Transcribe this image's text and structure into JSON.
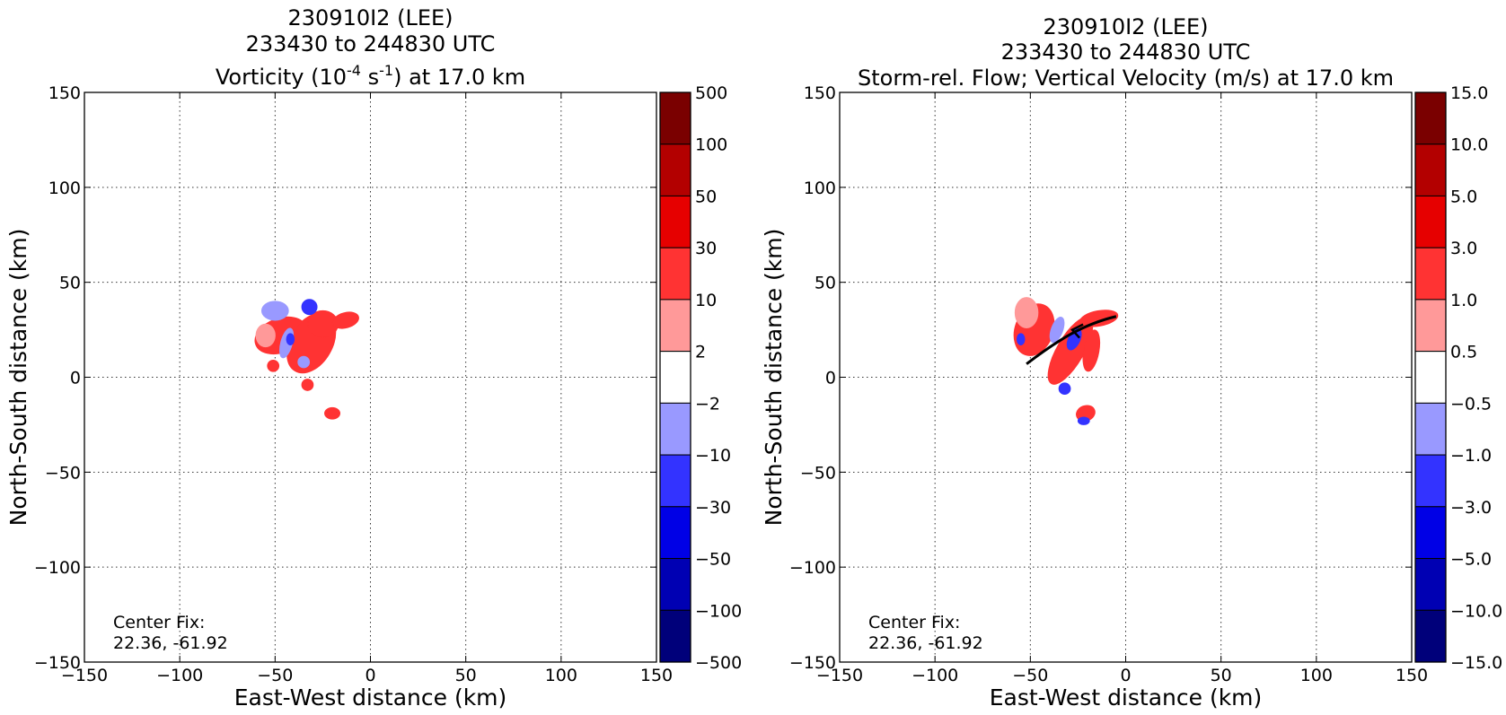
{
  "panels": [
    {
      "id": "left",
      "title_lines": [
        "230910I2 (LEE)",
        "233430 to 244830 UTC"
      ],
      "title_var": {
        "pre": "Vorticity (10",
        "sup1": "-4",
        "mid": " s",
        "sup2": "-1",
        "post": ") at 17.0 km"
      },
      "xlabel": "East-West distance (km)",
      "ylabel": "North-South distance (km)",
      "annotation": [
        "Center Fix:",
        "22.36, -61.92"
      ]
    },
    {
      "id": "right",
      "title_lines": [
        "230910I2 (LEE)",
        "233430 to 244830 UTC",
        "Storm-rel. Flow; Vertical Velocity (m/s) at 17.0 km"
      ],
      "xlabel": "East-West distance (km)",
      "ylabel": "North-South distance (km)",
      "annotation": [
        "Center Fix:",
        "22.36, -61.92"
      ]
    }
  ],
  "chart_data": [
    {
      "type": "heatmap",
      "title": "230910I2 (LEE) 233430 to 244830 UTC Vorticity (10^-4 s^-1) at 17.0 km",
      "xlabel": "East-West distance (km)",
      "ylabel": "North-South distance (km)",
      "xlim": [
        -150,
        150
      ],
      "ylim": [
        -150,
        150
      ],
      "xticks": [
        -150,
        -100,
        -50,
        0,
        50,
        100,
        150
      ],
      "yticks": [
        -150,
        -100,
        -50,
        0,
        50,
        100,
        150
      ],
      "xtick_labels": [
        "−150",
        "−100",
        "−50",
        "0",
        "50",
        "100",
        "150"
      ],
      "ytick_labels": [
        "−150",
        "−100",
        "−50",
        "0",
        "50",
        "100",
        "150"
      ],
      "grid": true,
      "colorbar": {
        "labels": [
          "500",
          "100",
          "50",
          "30",
          "10",
          "2",
          "−2",
          "−10",
          "−30",
          "−50",
          "−100",
          "−500"
        ],
        "bands": [
          "#7a0000",
          "#b30000",
          "#e60000",
          "#ff3333",
          "#ff9999",
          "#ffffff",
          "#9999ff",
          "#3333ff",
          "#0000e6",
          "#0000b3",
          "#00007a"
        ]
      },
      "regions": [
        {
          "x": -47,
          "y": 22,
          "rx": 14,
          "ry": 9,
          "rot": -20,
          "level": "10 to 30"
        },
        {
          "x": -31,
          "y": 18,
          "rx": 11,
          "ry": 17,
          "rot": 30,
          "level": "10 to 30"
        },
        {
          "x": -25,
          "y": 28,
          "rx": 8,
          "ry": 7,
          "rot": 0,
          "level": "10 to 30"
        },
        {
          "x": -13,
          "y": 30,
          "rx": 7,
          "ry": 4,
          "rot": -15,
          "level": "10 to 30"
        },
        {
          "x": -55,
          "y": 22,
          "rx": 5,
          "ry": 6,
          "rot": 0,
          "level": "2 to 10"
        },
        {
          "x": -50,
          "y": 35,
          "rx": 7,
          "ry": 5,
          "rot": 0,
          "level": "-10 to -2"
        },
        {
          "x": -44,
          "y": 18,
          "rx": 3,
          "ry": 8,
          "rot": 15,
          "level": "-10 to -2"
        },
        {
          "x": -32,
          "y": 37,
          "rx": 4,
          "ry": 4,
          "rot": 0,
          "level": "-30 to -10"
        },
        {
          "x": -42,
          "y": 20,
          "rx": 2,
          "ry": 3,
          "rot": 0,
          "level": "-30 to -10"
        },
        {
          "x": -35,
          "y": 8,
          "rx": 3,
          "ry": 3,
          "rot": 0,
          "level": "-10 to -2"
        },
        {
          "x": -33,
          "y": -4,
          "rx": 3,
          "ry": 3,
          "rot": 0,
          "level": "10 to 30"
        },
        {
          "x": -51,
          "y": 6,
          "rx": 3,
          "ry": 3,
          "rot": 0,
          "level": "10 to 30"
        },
        {
          "x": -20,
          "y": -19,
          "rx": 4,
          "ry": 3,
          "rot": 0,
          "level": "10 to 30"
        }
      ],
      "annotation": "Center Fix: 22.36, -61.92"
    },
    {
      "type": "heatmap",
      "title": "230910I2 (LEE) 233430 to 244830 UTC Storm-rel. Flow; Vertical Velocity (m/s) at 17.0 km",
      "xlabel": "East-West distance (km)",
      "ylabel": "North-South distance (km)",
      "xlim": [
        -150,
        150
      ],
      "ylim": [
        -150,
        150
      ],
      "xticks": [
        -150,
        -100,
        -50,
        0,
        50,
        100,
        150
      ],
      "yticks": [
        -150,
        -100,
        -50,
        0,
        50,
        100,
        150
      ],
      "xtick_labels": [
        "−150",
        "−100",
        "−50",
        "0",
        "50",
        "100",
        "150"
      ],
      "ytick_labels": [
        "−150",
        "−100",
        "−50",
        "0",
        "50",
        "100",
        "150"
      ],
      "grid": true,
      "colorbar": {
        "labels": [
          "15.0",
          "10.0",
          "5.0",
          "3.0",
          "1.0",
          "0.5",
          "−0.5",
          "−1.0",
          "−3.0",
          "−5.0",
          "−10.0",
          "−15.0"
        ],
        "bands": [
          "#7a0000",
          "#b30000",
          "#e60000",
          "#ff3333",
          "#ff9999",
          "#ffffff",
          "#9999ff",
          "#3333ff",
          "#0000e6",
          "#0000b3",
          "#00007a"
        ]
      },
      "regions": [
        {
          "x": -48,
          "y": 25,
          "rx": 10,
          "ry": 14,
          "rot": 20,
          "level": "1.0 to 3.0"
        },
        {
          "x": -52,
          "y": 34,
          "rx": 6,
          "ry": 8,
          "rot": 0,
          "level": "0.5 to 1.0"
        },
        {
          "x": -29,
          "y": 14,
          "rx": 7,
          "ry": 20,
          "rot": 30,
          "level": "1.0 to 3.0"
        },
        {
          "x": -18,
          "y": 14,
          "rx": 4,
          "ry": 11,
          "rot": 10,
          "level": "1.0 to 3.0"
        },
        {
          "x": -14,
          "y": 31,
          "rx": 10,
          "ry": 4,
          "rot": -10,
          "level": "1.0 to 3.0"
        },
        {
          "x": -36,
          "y": 25,
          "rx": 3,
          "ry": 7,
          "rot": 20,
          "level": "-1.0 to -0.5"
        },
        {
          "x": -27,
          "y": 20,
          "rx": 3,
          "ry": 6,
          "rot": 25,
          "level": "-3.0 to -1.0"
        },
        {
          "x": -55,
          "y": 20,
          "rx": 2,
          "ry": 3,
          "rot": 0,
          "level": "-3.0 to -1.0"
        },
        {
          "x": -32,
          "y": -6,
          "rx": 3,
          "ry": 3,
          "rot": 0,
          "level": "-3.0 to -1.0"
        },
        {
          "x": -21,
          "y": -19,
          "rx": 5,
          "ry": 4,
          "rot": -20,
          "level": "1.0 to 3.0"
        },
        {
          "x": -22,
          "y": -23,
          "rx": 3,
          "ry": 2,
          "rot": 0,
          "level": "-3.0 to -1.0"
        }
      ],
      "streamline": {
        "points": [
          [
            -52,
            7
          ],
          [
            -35,
            20
          ],
          [
            -22,
            28
          ],
          [
            -5,
            32
          ]
        ],
        "arrow_at": [
          -28,
          25
        ]
      },
      "annotation": "Center Fix: 22.36, -61.92"
    }
  ]
}
